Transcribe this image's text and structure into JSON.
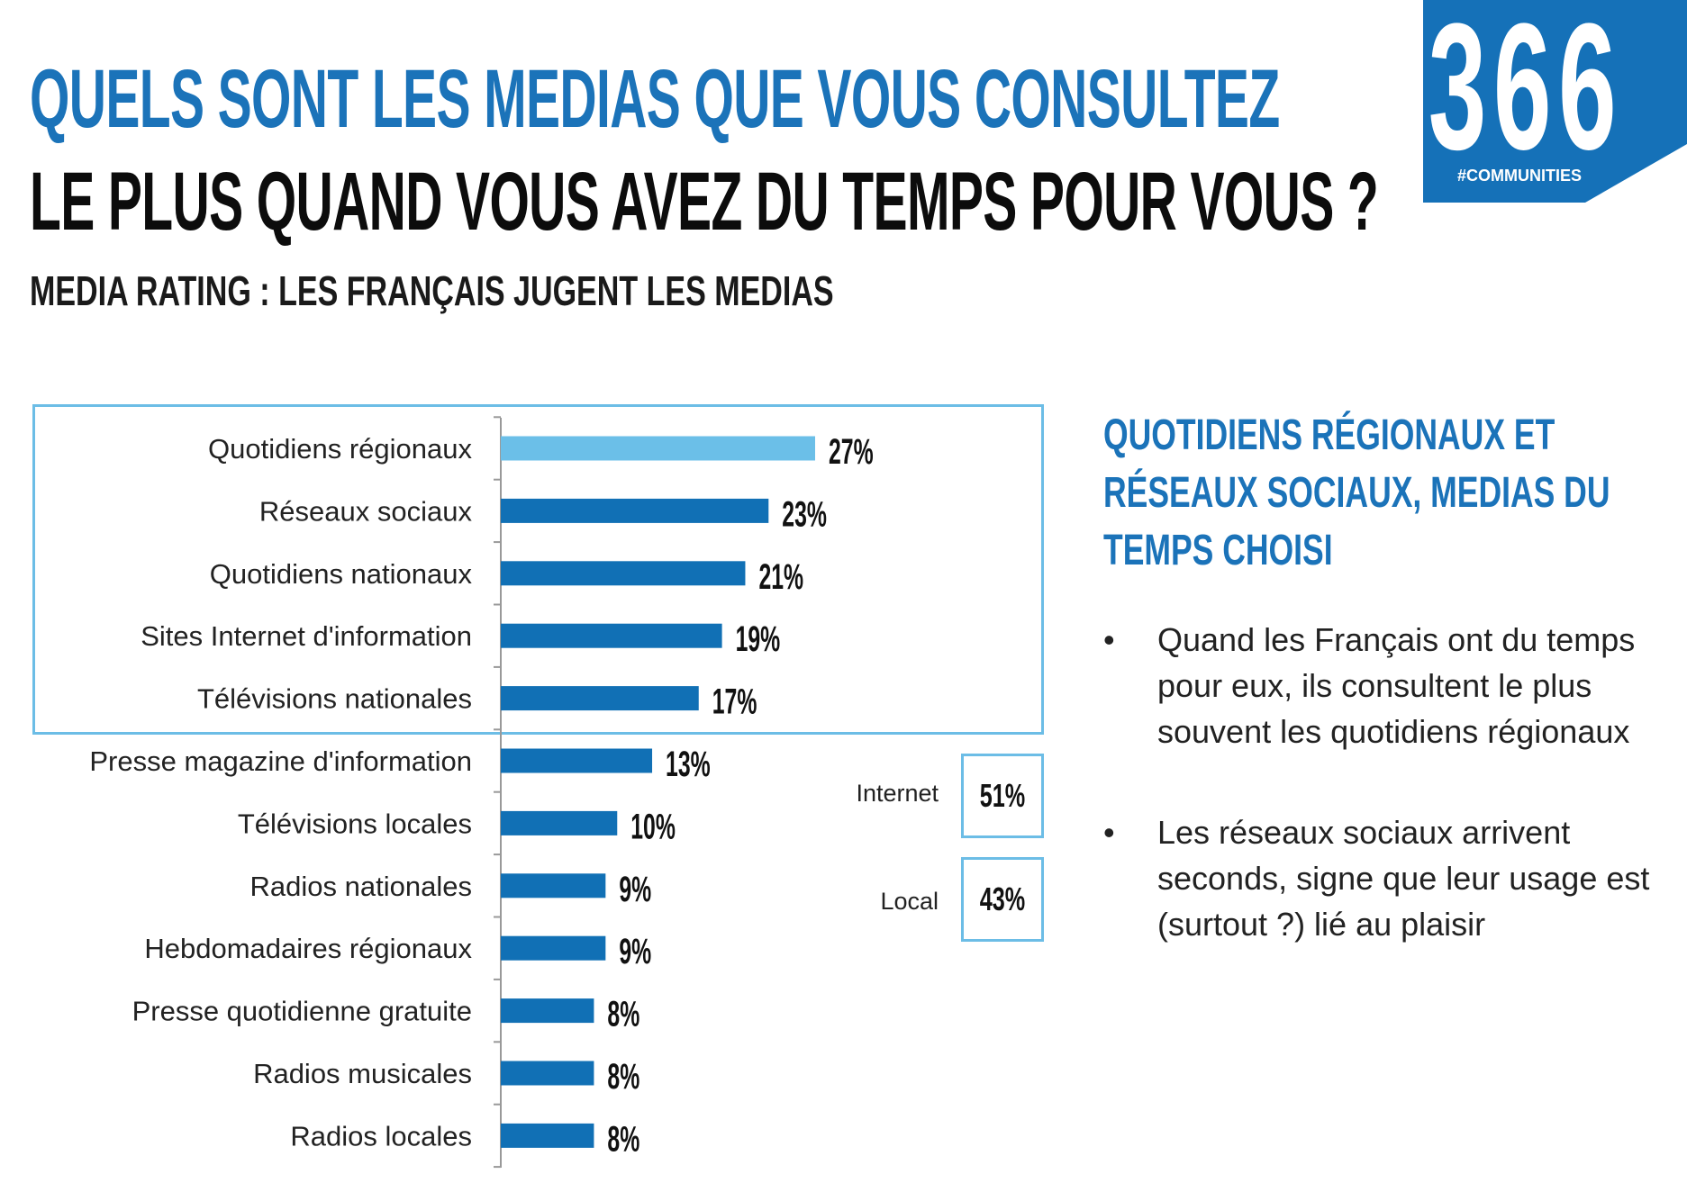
{
  "header": {
    "title_line1": "QUELS SONT LES MEDIAS QUE VOUS CONSULTEZ",
    "title_line2": "LE PLUS QUAND VOUS AVEZ DU TEMPS POUR VOUS ?",
    "subtitle": "MEDIA RATING : LES FRANÇAIS JUGENT LES MEDIAS"
  },
  "logo": {
    "number": "366",
    "tag": "#COMMUNITIES",
    "color": "#1571b8"
  },
  "colors": {
    "title_blue": "#1b73b9",
    "bar": "#1170b5",
    "bar_highlight": "#6bbfe8",
    "box_border": "#6cbde6"
  },
  "chart_data": {
    "type": "bar",
    "orientation": "horizontal",
    "categories": [
      "Quotidiens régionaux",
      "Réseaux sociaux",
      "Quotidiens nationaux",
      "Sites Internet d'information",
      "Télévisions nationales",
      "Presse magazine d'information",
      "Télévisions locales",
      "Radios nationales",
      "Hebdomadaires régionaux",
      "Presse quotidienne gratuite",
      "Radios musicales",
      "Radios locales"
    ],
    "values": [
      27,
      23,
      21,
      19,
      17,
      13,
      10,
      9,
      9,
      8,
      8,
      8
    ],
    "value_labels": [
      "27%",
      "23%",
      "21%",
      "19%",
      "17%",
      "13%",
      "10%",
      "9%",
      "9%",
      "8%",
      "8%",
      "8%"
    ],
    "highlighted_index": 0,
    "grid": false,
    "xlim": [
      0,
      27
    ]
  },
  "summary": [
    {
      "label": "Internet",
      "value": "51%"
    },
    {
      "label": "Local",
      "value": "43%"
    }
  ],
  "sidebar": {
    "heading_lines": [
      "QUOTIDIENS RÉGIONAUX ET",
      "RÉSEAUX SOCIAUX, MEDIAS DU",
      "TEMPS CHOISI"
    ],
    "bullets": [
      "Quand les Français ont du temps pour eux, ils consultent le plus souvent les quotidiens régionaux",
      "Les réseaux sociaux arrivent seconds, signe que leur usage est (surtout ?) lié au plaisir"
    ],
    "bullet_symbol": "•"
  }
}
